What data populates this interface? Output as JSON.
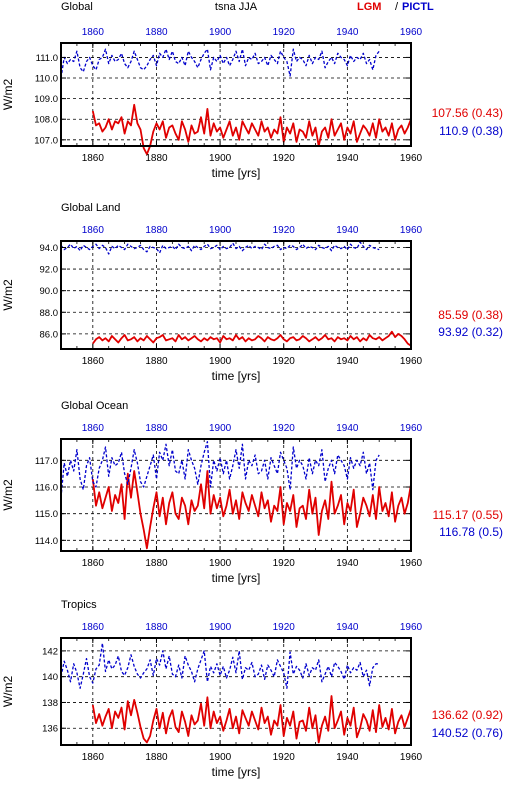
{
  "header": {
    "left": "Global",
    "center": "tsna JJA",
    "legend_lgm": "LGM",
    "legend_sep": "/",
    "legend_pictl": "PICTL"
  },
  "colors": {
    "lgm": "#e00000",
    "pictl": "#0000cc",
    "grid": "#000000"
  },
  "chart_data": [
    {
      "type": "line",
      "title": "Global",
      "xlabel": "time [yrs]",
      "ylabel": "W/m2",
      "xlim": [
        1850,
        1960
      ],
      "ylim": [
        106.7,
        111.7
      ],
      "yticks": [
        "107.0",
        "108.0",
        "109.0",
        "110.0",
        "111.0"
      ],
      "ytick_values": [
        107,
        108,
        109,
        110,
        111
      ],
      "xticks": [
        "1860",
        "1880",
        "1900",
        "1920",
        "1940",
        "1960"
      ],
      "xtick_values": [
        1860,
        1880,
        1900,
        1920,
        1940,
        1960
      ],
      "grid": true,
      "series": [
        {
          "name": "LGM",
          "x_start": 1860,
          "x_end": 1960,
          "mean": 107.56,
          "std": 0.43,
          "stat_label": "107.56 (0.43)",
          "values": [
            108.4,
            107.7,
            107.8,
            107.4,
            107.6,
            108.0,
            107.5,
            107.9,
            107.8,
            108.1,
            107.3,
            107.9,
            107.7,
            108.7,
            107.8,
            107.5,
            106.6,
            106.3,
            106.7,
            107.4,
            107.8,
            107.5,
            107.9,
            107.1,
            107.6,
            107.7,
            107.3,
            107.0,
            107.9,
            107.5,
            106.9,
            107.7,
            107.3,
            107.4,
            108.1,
            107.3,
            108.5,
            107.2,
            107.8,
            107.4,
            107.6,
            107.1,
            107.5,
            107.9,
            107.2,
            107.6,
            107.0,
            107.9,
            107.6,
            107.3,
            107.8,
            107.5,
            107.2,
            107.9,
            107.4,
            107.6,
            107.1,
            107.5,
            107.3,
            108.1,
            106.9,
            107.6,
            107.3,
            107.8,
            106.9,
            107.5,
            107.4,
            107.1,
            107.9,
            107.2,
            107.6,
            106.7,
            107.4,
            107.6,
            107.1,
            108.0,
            107.2,
            107.5,
            107.8,
            107.0,
            107.6,
            107.3,
            107.9,
            106.9,
            107.3,
            107.7,
            107.5,
            107.2,
            107.8,
            107.1,
            108.0,
            107.4,
            107.6,
            107.2,
            107.8,
            107.0,
            107.5,
            107.7,
            107.3,
            107.6,
            108.0
          ]
        },
        {
          "name": "PICTL",
          "x_start": 1850,
          "x_end": 1950,
          "mean": 110.9,
          "std": 0.38,
          "stat_label": "110.9 (0.38)",
          "values": [
            110.0,
            111.0,
            110.7,
            110.9,
            110.8,
            111.3,
            110.5,
            110.3,
            110.8,
            111.0,
            110.6,
            110.4,
            110.9,
            111.0,
            111.4,
            110.7,
            111.1,
            110.8,
            110.9,
            111.2,
            110.7,
            110.5,
            110.8,
            111.3,
            110.9,
            110.5,
            110.4,
            110.6,
            110.9,
            111.1,
            110.6,
            111.2,
            111.0,
            111.4,
            110.9,
            111.3,
            110.8,
            110.7,
            111.0,
            110.6,
            111.3,
            111.0,
            110.8,
            110.5,
            110.9,
            111.2,
            111.4,
            110.4,
            111.0,
            110.8,
            111.1,
            110.7,
            111.0,
            110.6,
            110.9,
            111.3,
            110.8,
            111.4,
            110.6,
            111.0,
            110.9,
            111.2,
            110.7,
            110.8,
            111.0,
            110.6,
            111.1,
            110.9,
            110.7,
            111.3,
            111.0,
            110.8,
            110.1,
            111.4,
            110.8,
            111.0,
            110.9,
            110.6,
            111.1,
            110.7,
            111.0,
            110.9,
            111.3,
            110.5,
            110.8,
            111.0,
            110.7,
            111.2,
            111.0,
            110.9,
            110.6,
            111.1,
            110.8,
            111.0,
            110.9,
            111.2,
            110.7,
            110.9,
            110.4,
            111.1,
            111.3
          ]
        }
      ]
    },
    {
      "type": "line",
      "title": "Global Land",
      "xlabel": "time [yrs]",
      "ylabel": "W/m2",
      "xlim": [
        1850,
        1960
      ],
      "ylim": [
        84.6,
        94.6
      ],
      "yticks": [
        "86.0",
        "88.0",
        "90.0",
        "92.0",
        "94.0"
      ],
      "ytick_values": [
        86,
        88,
        90,
        92,
        94
      ],
      "xticks": [
        "1860",
        "1880",
        "1900",
        "1920",
        "1940",
        "1960"
      ],
      "xtick_values": [
        1860,
        1880,
        1900,
        1920,
        1940,
        1960
      ],
      "grid": true,
      "series": [
        {
          "name": "LGM",
          "x_start": 1860,
          "x_end": 1960,
          "mean": 85.59,
          "std": 0.38,
          "stat_label": "85.59 (0.38)",
          "values": [
            85.1,
            85.5,
            85.7,
            85.4,
            85.6,
            85.3,
            85.8,
            85.5,
            85.2,
            85.6,
            85.9,
            85.4,
            85.5,
            85.7,
            85.3,
            85.6,
            85.4,
            85.8,
            85.5,
            85.2,
            85.6,
            85.7,
            85.9,
            85.4,
            85.5,
            85.6,
            85.3,
            85.9,
            85.5,
            85.7,
            85.4,
            85.6,
            85.8,
            85.5,
            85.3,
            85.6,
            85.4,
            85.7,
            85.5,
            85.6,
            85.2,
            85.8,
            85.5,
            85.6,
            85.4,
            85.9,
            85.5,
            85.7,
            85.3,
            85.6,
            85.4,
            85.5,
            85.8,
            85.6,
            85.3,
            85.7,
            85.5,
            85.4,
            85.6,
            85.9,
            85.5,
            85.3,
            85.6,
            85.7,
            85.4,
            85.5,
            85.8,
            85.6,
            85.3,
            85.5,
            85.7,
            85.4,
            85.6,
            85.9,
            85.5,
            85.6,
            85.3,
            85.7,
            85.5,
            85.6,
            85.4,
            85.8,
            85.5,
            85.7,
            85.3,
            85.6,
            85.4,
            85.9,
            85.6,
            85.5,
            85.7,
            85.4,
            85.6,
            85.8,
            86.2,
            85.7,
            86.0,
            85.8,
            85.5,
            85.1,
            84.9
          ]
        },
        {
          "name": "PICTL",
          "x_start": 1850,
          "x_end": 1950,
          "mean": 93.92,
          "std": 0.32,
          "stat_label": "93.92 (0.32)",
          "values": [
            94.2,
            93.8,
            94.0,
            94.3,
            93.9,
            94.1,
            93.7,
            94.2,
            94.0,
            93.8,
            94.1,
            94.3,
            93.9,
            94.2,
            94.0,
            93.4,
            94.1,
            93.9,
            94.2,
            94.0,
            93.8,
            94.3,
            94.1,
            93.9,
            94.0,
            94.2,
            93.8,
            93.6,
            94.1,
            94.0,
            93.9,
            93.5,
            94.2,
            93.9,
            94.0,
            94.1,
            93.8,
            94.3,
            94.0,
            93.9,
            94.1,
            93.7,
            94.2,
            94.0,
            93.8,
            94.1,
            94.3,
            93.9,
            94.0,
            94.2,
            93.8,
            94.1,
            93.9,
            94.0,
            94.4,
            93.9,
            94.1,
            93.7,
            94.0,
            94.2,
            93.9,
            94.1,
            94.0,
            93.8,
            94.3,
            94.0,
            93.9,
            94.1,
            94.2,
            93.8,
            94.0,
            93.9,
            94.2,
            94.1,
            93.8,
            94.0,
            94.3,
            93.9,
            94.1,
            94.0,
            93.8,
            94.2,
            94.0,
            93.9,
            94.1,
            93.7,
            94.2,
            94.0,
            93.9,
            94.1,
            93.8,
            94.3,
            94.0,
            93.9,
            94.5,
            94.1,
            93.8,
            94.2,
            94.0,
            93.9,
            93.8
          ]
        }
      ]
    },
    {
      "type": "line",
      "title": "Global Ocean",
      "xlabel": "time [yrs]",
      "ylabel": "W/m2",
      "xlim": [
        1850,
        1960
      ],
      "ylim": [
        113.6,
        117.8
      ],
      "yticks": [
        "114.0",
        "115.0",
        "116.0",
        "117.0"
      ],
      "ytick_values": [
        114,
        115,
        116,
        117
      ],
      "xticks": [
        "1860",
        "1880",
        "1900",
        "1920",
        "1940",
        "1960"
      ],
      "xtick_values": [
        1860,
        1880,
        1900,
        1920,
        1940,
        1960
      ],
      "grid": true,
      "series": [
        {
          "name": "LGM",
          "x_start": 1860,
          "x_end": 1960,
          "mean": 115.17,
          "std": 0.55,
          "stat_label": "115.17 (0.55)",
          "values": [
            116.3,
            115.3,
            115.8,
            115.2,
            115.6,
            116.0,
            115.1,
            115.7,
            115.4,
            116.1,
            114.8,
            116.5,
            115.6,
            116.6,
            115.8,
            115.0,
            114.4,
            113.7,
            114.5,
            115.2,
            115.8,
            114.9,
            115.6,
            114.6,
            115.4,
            115.8,
            115.0,
            114.8,
            115.6,
            115.3,
            114.6,
            115.5,
            115.1,
            115.3,
            116.1,
            115.2,
            116.6,
            115.0,
            115.7,
            115.2,
            115.6,
            114.9,
            115.3,
            115.9,
            115.0,
            115.5,
            114.8,
            115.8,
            115.4,
            115.1,
            115.7,
            115.3,
            114.9,
            115.8,
            115.2,
            115.5,
            114.7,
            115.3,
            115.1,
            116.0,
            114.6,
            115.4,
            115.1,
            115.7,
            114.5,
            115.2,
            115.3,
            114.8,
            115.9,
            115.0,
            115.6,
            114.2,
            115.1,
            115.5,
            114.8,
            116.2,
            115.0,
            115.3,
            115.7,
            114.6,
            115.4,
            115.1,
            115.9,
            114.5,
            115.0,
            115.6,
            115.3,
            114.9,
            115.7,
            114.8,
            116.0,
            115.1,
            115.4,
            114.9,
            115.8,
            114.7,
            115.3,
            115.6,
            115.0,
            115.4,
            116.1
          ]
        },
        {
          "name": "PICTL",
          "x_start": 1850,
          "x_end": 1950,
          "mean": 116.78,
          "std": 0.5,
          "stat_label": "116.78 (0.5)",
          "values": [
            115.6,
            116.9,
            116.4,
            117.0,
            116.6,
            117.4,
            116.3,
            115.9,
            116.8,
            117.1,
            116.2,
            116.0,
            116.7,
            117.0,
            117.5,
            116.4,
            117.1,
            116.8,
            116.9,
            117.3,
            116.5,
            116.1,
            116.7,
            117.4,
            116.9,
            116.2,
            116.0,
            116.4,
            116.8,
            117.2,
            116.3,
            117.3,
            117.0,
            117.6,
            116.8,
            117.4,
            116.6,
            116.5,
            117.0,
            116.3,
            117.4,
            117.0,
            116.7,
            116.1,
            116.8,
            117.3,
            117.7,
            116.0,
            117.0,
            116.6,
            117.1,
            116.5,
            117.0,
            116.3,
            116.8,
            117.4,
            116.7,
            117.6,
            116.3,
            117.0,
            116.8,
            117.2,
            116.5,
            116.6,
            117.0,
            116.3,
            117.1,
            116.8,
            116.5,
            117.3,
            117.0,
            116.7,
            115.9,
            117.5,
            116.7,
            117.0,
            116.8,
            116.3,
            117.1,
            116.5,
            117.0,
            116.8,
            117.4,
            116.2,
            116.7,
            117.0,
            116.5,
            117.2,
            117.0,
            116.8,
            116.3,
            117.1,
            116.7,
            117.0,
            116.8,
            117.3,
            116.5,
            116.9,
            115.9,
            117.0,
            117.2
          ]
        }
      ]
    },
    {
      "type": "line",
      "title": "Tropics",
      "xlabel": "time [yrs]",
      "ylabel": "W/m2",
      "xlim": [
        1850,
        1960
      ],
      "ylim": [
        134.7,
        143.0
      ],
      "yticks": [
        "136",
        "138",
        "140",
        "142"
      ],
      "ytick_values": [
        136,
        138,
        140,
        142
      ],
      "xticks": [
        "1860",
        "1880",
        "1900",
        "1920",
        "1940",
        "1960"
      ],
      "xtick_values": [
        1860,
        1880,
        1900,
        1920,
        1940,
        1960
      ],
      "grid": true,
      "series": [
        {
          "name": "LGM",
          "x_start": 1860,
          "x_end": 1960,
          "mean": 136.62,
          "std": 0.92,
          "stat_label": "136.62 (0.92)",
          "values": [
            137.8,
            136.4,
            137.1,
            136.2,
            136.9,
            137.5,
            136.0,
            137.3,
            136.8,
            137.6,
            135.9,
            138.1,
            137.0,
            138.2,
            137.2,
            136.1,
            135.2,
            134.9,
            135.4,
            136.6,
            137.5,
            136.0,
            137.2,
            135.6,
            136.8,
            137.4,
            136.1,
            135.7,
            137.3,
            136.5,
            135.4,
            137.0,
            136.3,
            136.6,
            137.9,
            136.2,
            138.4,
            136.0,
            137.3,
            136.4,
            136.9,
            135.8,
            136.6,
            137.5,
            136.0,
            136.9,
            135.6,
            137.4,
            136.8,
            136.2,
            137.3,
            136.6,
            135.9,
            137.6,
            136.4,
            136.9,
            135.5,
            136.6,
            136.2,
            137.8,
            135.4,
            136.8,
            136.2,
            137.3,
            135.2,
            136.5,
            136.6,
            135.8,
            137.6,
            136.0,
            137.0,
            134.9,
            136.2,
            136.9,
            135.8,
            138.5,
            136.0,
            136.6,
            137.3,
            135.5,
            136.8,
            136.2,
            137.6,
            135.3,
            136.0,
            137.1,
            136.6,
            135.8,
            137.4,
            135.7,
            137.8,
            136.1,
            136.8,
            135.9,
            137.5,
            135.6,
            136.5,
            137.0,
            136.1,
            136.8,
            137.5
          ]
        },
        {
          "name": "PICTL",
          "x_start": 1850,
          "x_end": 1950,
          "mean": 140.52,
          "std": 0.76,
          "stat_label": "140.52 (0.76)",
          "values": [
            140.0,
            141.2,
            140.5,
            139.6,
            141.0,
            140.3,
            139.1,
            140.2,
            141.4,
            140.0,
            139.5,
            140.6,
            140.9,
            142.6,
            140.4,
            141.3,
            140.6,
            140.9,
            141.6,
            140.4,
            140.1,
            140.7,
            141.7,
            140.8,
            140.2,
            139.9,
            140.3,
            140.6,
            141.3,
            140.1,
            141.4,
            140.9,
            142.0,
            140.6,
            141.6,
            140.2,
            140.0,
            140.9,
            139.9,
            141.6,
            140.9,
            140.4,
            139.6,
            140.6,
            141.3,
            142.0,
            139.6,
            140.8,
            140.3,
            141.0,
            140.1,
            140.8,
            139.9,
            140.5,
            141.5,
            140.3,
            142.0,
            139.8,
            140.7,
            140.5,
            141.1,
            140.0,
            140.2,
            140.9,
            139.8,
            140.9,
            140.5,
            140.0,
            141.3,
            140.8,
            140.3,
            139.1,
            141.9,
            140.2,
            140.8,
            140.5,
            139.9,
            141.0,
            140.1,
            140.7,
            140.5,
            141.3,
            139.6,
            140.2,
            140.8,
            140.0,
            141.1,
            140.8,
            140.4,
            139.8,
            140.9,
            140.3,
            140.7,
            140.5,
            141.1,
            140.0,
            140.5,
            139.3,
            140.7,
            141.0,
            141.0
          ]
        }
      ]
    }
  ]
}
